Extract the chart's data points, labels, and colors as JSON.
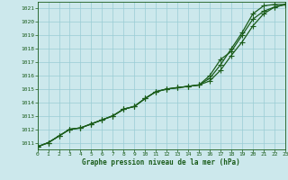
{
  "title": "Graphe pression niveau de la mer (hPa)",
  "bg_color": "#cce8ec",
  "grid_color": "#99ccd4",
  "line_color": "#1a5c1a",
  "xlim": [
    0,
    23
  ],
  "ylim": [
    1010.5,
    1021.5
  ],
  "xticks": [
    0,
    1,
    2,
    3,
    4,
    5,
    6,
    7,
    8,
    9,
    10,
    11,
    12,
    13,
    14,
    15,
    16,
    17,
    18,
    19,
    20,
    21,
    22,
    23
  ],
  "yticks": [
    1011,
    1012,
    1013,
    1014,
    1015,
    1016,
    1017,
    1018,
    1019,
    1020,
    1021
  ],
  "series": [
    [
      1010.7,
      1011.0,
      1011.5,
      1012.0,
      1012.1,
      1012.4,
      1012.7,
      1013.0,
      1013.5,
      1013.7,
      1014.3,
      1014.8,
      1015.0,
      1015.1,
      1015.2,
      1015.3,
      1015.6,
      1016.4,
      1017.5,
      1018.5,
      1019.7,
      1020.6,
      1021.1,
      1021.3
    ],
    [
      1010.7,
      1011.0,
      1011.5,
      1012.0,
      1012.1,
      1012.4,
      1012.7,
      1013.0,
      1013.5,
      1013.7,
      1014.3,
      1014.8,
      1015.0,
      1015.1,
      1015.2,
      1015.3,
      1016.0,
      1017.2,
      1017.8,
      1019.0,
      1020.2,
      1020.8,
      1021.1,
      1021.3
    ],
    [
      1010.7,
      1011.0,
      1011.5,
      1012.0,
      1012.1,
      1012.4,
      1012.7,
      1013.0,
      1013.5,
      1013.7,
      1014.3,
      1014.8,
      1015.0,
      1015.1,
      1015.2,
      1015.3,
      1015.8,
      1016.8,
      1018.0,
      1019.2,
      1020.6,
      1021.2,
      1021.3,
      1021.3
    ]
  ],
  "marker": "+",
  "markersize": 4,
  "linewidth": 0.9
}
